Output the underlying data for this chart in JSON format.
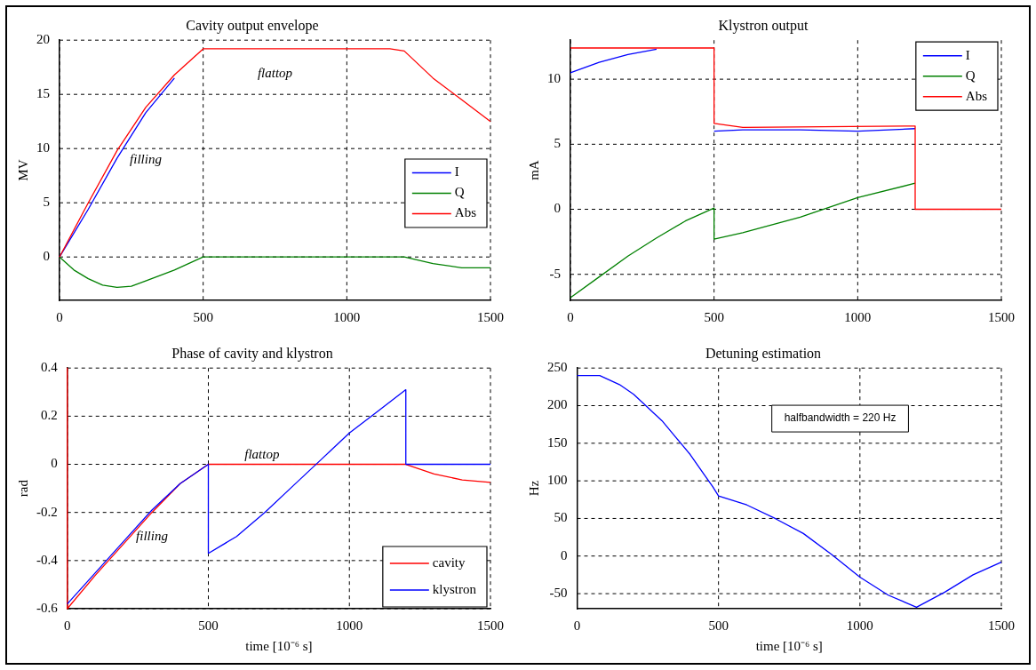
{
  "chart_data": [
    {
      "type": "line",
      "title": "Cavity output envelope",
      "ylabel": "MV",
      "xlim": [
        0,
        1500
      ],
      "xticks": [
        0,
        500,
        1000,
        1500
      ],
      "ylim": [
        -4,
        20
      ],
      "yticks": [
        0,
        5,
        10,
        15,
        20
      ],
      "grid": true,
      "legend": "right",
      "series": [
        {
          "name": "I",
          "color": "#0000ff",
          "x": [
            0,
            100,
            200,
            300,
            400
          ],
          "values": [
            0,
            4.4,
            9.1,
            13.3,
            16.5
          ]
        },
        {
          "name": "Q",
          "color": "#008000",
          "x": [
            0,
            50,
            100,
            150,
            200,
            250,
            300,
            400,
            500,
            1200,
            1300,
            1400,
            1500
          ],
          "values": [
            0,
            -1.2,
            -2,
            -2.6,
            -2.8,
            -2.7,
            -2.2,
            -1.2,
            0,
            0,
            -0.6,
            -1,
            -1
          ]
        },
        {
          "name": "Abs",
          "color": "#ff0000",
          "x": [
            0,
            100,
            200,
            300,
            400,
            500,
            1150,
            1200,
            1300,
            1400,
            1500
          ],
          "values": [
            0,
            5,
            9.8,
            13.8,
            16.8,
            19.2,
            19.2,
            19,
            16.5,
            14.5,
            12.5
          ]
        }
      ],
      "annotations": [
        "flattop",
        "filling"
      ]
    },
    {
      "type": "line",
      "title": "Klystron output",
      "ylabel": "mA",
      "xlim": [
        0,
        1500
      ],
      "xticks": [
        0,
        500,
        1000,
        1500
      ],
      "ylim": [
        -7,
        13
      ],
      "yticks": [
        -5,
        0,
        5,
        10
      ],
      "grid": true,
      "legend": "top right",
      "series": [
        {
          "name": "I",
          "color": "#0000ff",
          "x": [
            0,
            100,
            200,
            300,
            400,
            500,
            600,
            800,
            1000,
            1200
          ],
          "values": [
            10.5,
            11.3,
            11.9,
            12.3,
            null,
            6.0,
            6.1,
            6.1,
            6.0,
            6.2
          ]
        },
        {
          "name": "Q",
          "color": "#008000",
          "x": [
            0,
            100,
            200,
            300,
            400,
            500,
            500,
            600,
            800,
            1000,
            1200
          ],
          "values": [
            -6.8,
            -5.2,
            -3.6,
            -2.2,
            -0.9,
            0.1,
            -2.3,
            -1.8,
            -0.6,
            0.9,
            2.0
          ]
        },
        {
          "name": "Abs",
          "color": "#ff0000",
          "x": [
            0,
            500,
            500,
            600,
            1200,
            1200,
            1500
          ],
          "values": [
            12.4,
            12.4,
            6.6,
            6.3,
            6.4,
            0,
            0
          ]
        }
      ]
    },
    {
      "type": "line",
      "title": "Phase of cavity and klystron",
      "xlabel": "time [10⁻⁶ s]",
      "ylabel": "rad",
      "xlim": [
        0,
        1500
      ],
      "xticks": [
        0,
        500,
        1000,
        1500
      ],
      "ylim": [
        -0.6,
        0.4
      ],
      "yticks": [
        -0.6,
        -0.4,
        -0.2,
        0,
        0.2,
        0.4
      ],
      "grid": true,
      "legend": "bottom right",
      "series": [
        {
          "name": "cavity",
          "color": "#ff0000",
          "x": [
            0,
            0,
            100,
            200,
            300,
            400,
            500,
            1200,
            1300,
            1400,
            1500
          ],
          "values": [
            0.4,
            -0.6,
            -0.46,
            -0.33,
            -0.2,
            -0.08,
            0,
            0,
            -0.04,
            -0.065,
            -0.075
          ]
        },
        {
          "name": "klystron",
          "color": "#0000ff",
          "x": [
            0,
            100,
            200,
            300,
            400,
            500,
            500,
            600,
            700,
            800,
            900,
            1000,
            1100,
            1200,
            1200,
            1500
          ],
          "values": [
            -0.58,
            -0.45,
            -0.32,
            -0.19,
            -0.08,
            0,
            -0.37,
            -0.3,
            -0.2,
            -0.09,
            0.02,
            0.13,
            0.22,
            0.31,
            0,
            0
          ]
        }
      ],
      "annotations": [
        "flattop",
        "filling"
      ]
    },
    {
      "type": "line",
      "title": "Detuning estimation",
      "xlabel": "time [10⁻⁶ s]",
      "ylabel": "Hz",
      "xlim": [
        0,
        1500
      ],
      "xticks": [
        0,
        500,
        1000,
        1500
      ],
      "ylim": [
        -70,
        250
      ],
      "yticks": [
        -50,
        0,
        50,
        100,
        150,
        200,
        250
      ],
      "grid": true,
      "series": [
        {
          "color": "#0000ff",
          "x": [
            0,
            80,
            150,
            200,
            300,
            400,
            450,
            480,
            500,
            600,
            700,
            800,
            900,
            1000,
            1100,
            1200,
            1300,
            1400,
            1500
          ],
          "values": [
            240,
            240,
            228,
            215,
            180,
            135,
            108,
            92,
            80,
            68,
            50,
            30,
            2,
            -28,
            -52,
            -68,
            -48,
            -25,
            -8
          ]
        }
      ],
      "annotations": [
        "halfbandwidth = 220 Hz"
      ]
    }
  ]
}
